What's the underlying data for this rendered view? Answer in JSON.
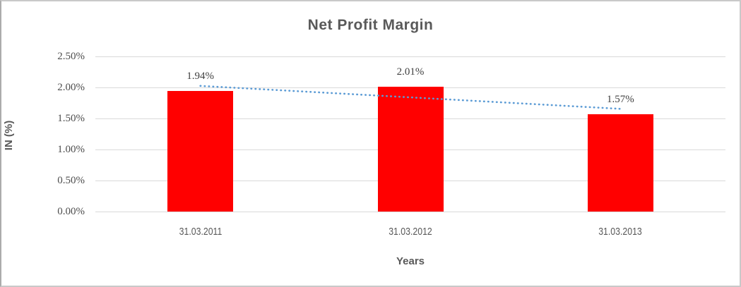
{
  "window": {
    "background": "#ffffff",
    "frame_border_color": "#c9c9c9"
  },
  "chart_data": {
    "type": "bar",
    "title": "Net Profit Margin",
    "xlabel": "Years",
    "ylabel": "IN (%)",
    "categories": [
      "31.03.2011",
      "31.03.2012",
      "31.03.2013"
    ],
    "values": [
      1.94,
      2.01,
      1.57
    ],
    "data_labels": [
      "1.94%",
      "2.01%",
      "1.57%"
    ],
    "ylim": [
      0,
      2.5
    ],
    "ytick_step": 0.5,
    "ytick_labels": [
      "0.00%",
      "0.50%",
      "1.00%",
      "1.50%",
      "2.00%",
      "2.50%"
    ],
    "grid": true,
    "legend": "none",
    "bar_color": "#ff0000",
    "gridline_color": "#d9d9d9",
    "text_color": "#595959",
    "trendline": {
      "type": "linear",
      "style": "dotted",
      "color": "#5b9bd5",
      "start_value": 2.025,
      "end_value": 1.655
    }
  }
}
